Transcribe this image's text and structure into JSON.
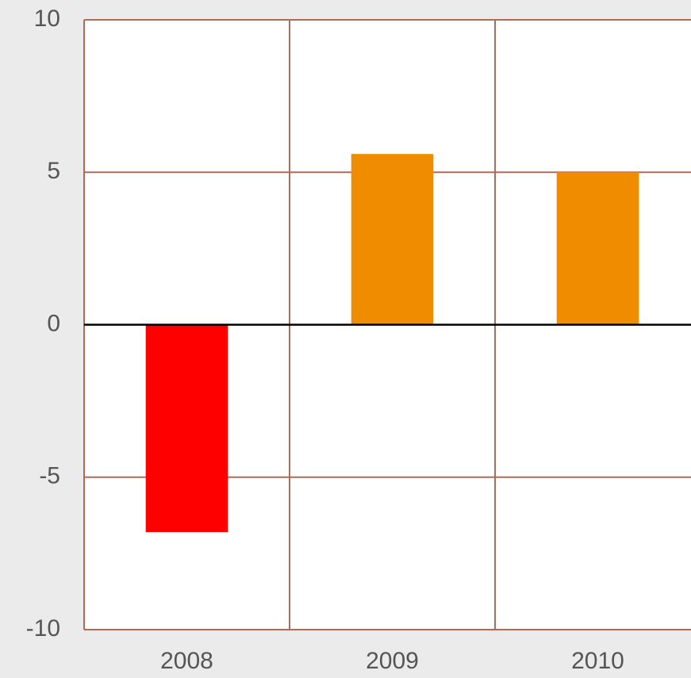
{
  "chart_data": {
    "type": "bar",
    "categories": [
      "2008",
      "2009",
      "2010"
    ],
    "values": [
      -6.8,
      5.6,
      5.0
    ],
    "colors": [
      "#ff0000",
      "#f08c00",
      "#f08c00"
    ],
    "ylim": [
      -10,
      10
    ],
    "yticks": [
      -10,
      -5,
      0,
      5,
      10
    ],
    "grid": true
  }
}
